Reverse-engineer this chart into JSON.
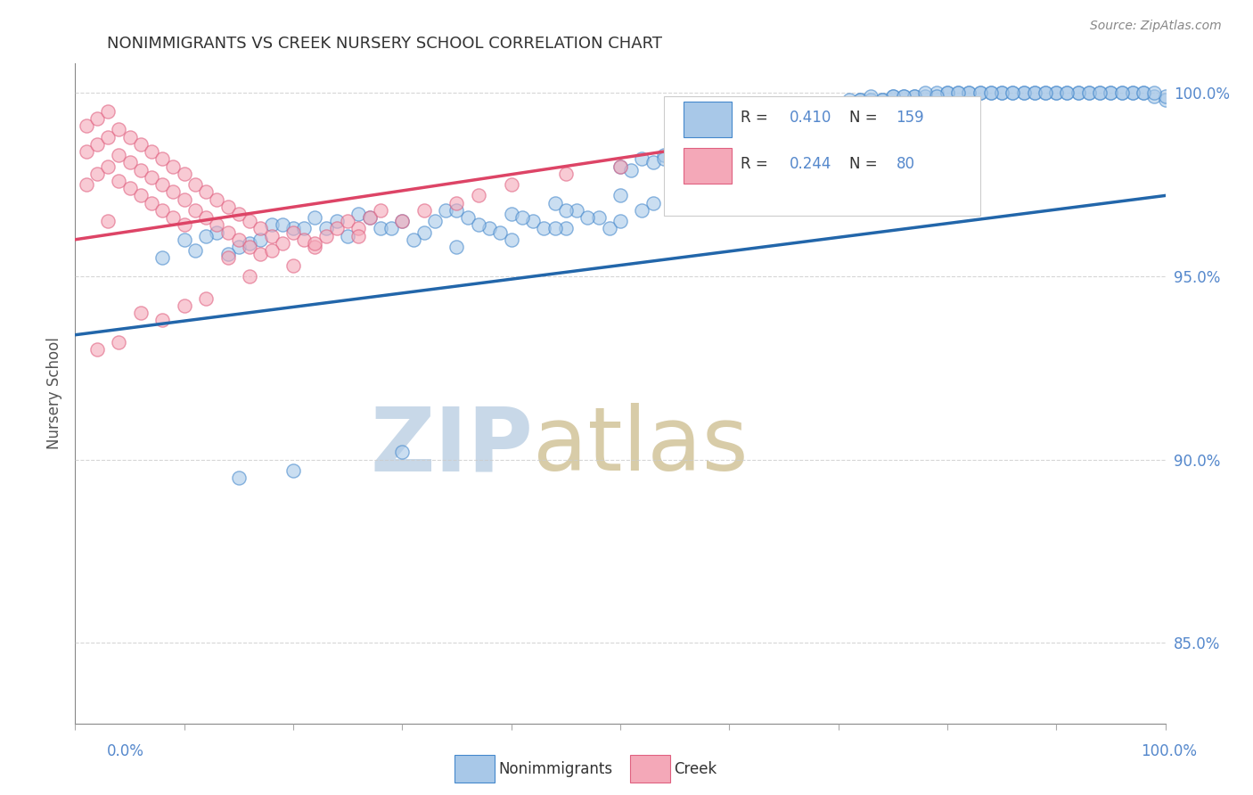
{
  "title": "NONIMMIGRANTS VS CREEK NURSERY SCHOOL CORRELATION CHART",
  "source": "Source: ZipAtlas.com",
  "ylabel": "Nursery School",
  "y_tick_labels": [
    "85.0%",
    "90.0%",
    "95.0%",
    "100.0%"
  ],
  "y_tick_values": [
    0.85,
    0.9,
    0.95,
    1.0
  ],
  "x_range": [
    0.0,
    1.0
  ],
  "y_range": [
    0.828,
    1.008
  ],
  "legend_r_values": [
    "0.410",
    "0.244"
  ],
  "legend_n_values": [
    "159",
    "80"
  ],
  "blue_color": "#a8c8e8",
  "pink_color": "#f4a8b8",
  "blue_edge_color": "#4488cc",
  "pink_edge_color": "#e06080",
  "blue_line_color": "#2266aa",
  "pink_line_color": "#dd4466",
  "watermark_zip_color": "#c8d8e8",
  "watermark_atlas_color": "#d8cca8",
  "background_color": "#ffffff",
  "grid_color": "#cccccc",
  "title_color": "#333333",
  "axis_label_color": "#5588cc",
  "blue_trend_x": [
    0.0,
    1.0
  ],
  "blue_trend_y": [
    0.934,
    0.972
  ],
  "pink_trend_x": [
    0.0,
    0.72
  ],
  "pink_trend_y": [
    0.96,
    0.992
  ],
  "blue_x_dense": [
    0.5,
    0.52,
    0.54,
    0.55,
    0.56,
    0.57,
    0.58,
    0.59,
    0.6,
    0.61,
    0.62,
    0.63,
    0.64,
    0.65,
    0.66,
    0.67,
    0.68,
    0.69,
    0.7,
    0.71,
    0.72,
    0.73,
    0.74,
    0.75,
    0.76,
    0.77,
    0.78,
    0.79,
    0.8,
    0.81,
    0.82,
    0.83,
    0.84,
    0.85,
    0.86,
    0.87,
    0.88,
    0.89,
    0.9,
    0.91,
    0.92,
    0.93,
    0.94,
    0.95,
    0.96,
    0.97,
    0.98,
    0.99,
    1.0,
    0.55,
    0.6,
    0.65,
    0.7,
    0.75,
    0.8,
    0.85,
    0.9,
    0.95,
    1.0,
    0.57,
    0.62,
    0.67,
    0.72,
    0.77,
    0.82,
    0.87,
    0.92,
    0.97,
    0.53,
    0.58,
    0.63,
    0.68,
    0.73,
    0.78,
    0.83,
    0.88,
    0.93,
    0.98,
    0.51,
    0.56,
    0.61,
    0.66,
    0.71,
    0.76,
    0.81,
    0.86,
    0.91,
    0.96,
    0.54,
    0.59,
    0.64,
    0.69,
    0.74,
    0.79,
    0.84,
    0.89,
    0.94,
    0.99
  ],
  "blue_y_dense": [
    0.98,
    0.982,
    0.983,
    0.985,
    0.986,
    0.987,
    0.988,
    0.989,
    0.99,
    0.991,
    0.992,
    0.993,
    0.993,
    0.994,
    0.995,
    0.995,
    0.996,
    0.996,
    0.997,
    0.997,
    0.998,
    0.998,
    0.998,
    0.999,
    0.999,
    0.999,
    0.999,
    1.0,
    1.0,
    1.0,
    1.0,
    1.0,
    1.0,
    1.0,
    1.0,
    1.0,
    1.0,
    1.0,
    1.0,
    1.0,
    1.0,
    1.0,
    1.0,
    1.0,
    1.0,
    1.0,
    1.0,
    0.999,
    0.998,
    0.984,
    0.991,
    0.995,
    0.997,
    0.999,
    1.0,
    1.0,
    1.0,
    1.0,
    0.999,
    0.986,
    0.992,
    0.996,
    0.998,
    0.999,
    1.0,
    1.0,
    1.0,
    1.0,
    0.981,
    0.988,
    0.993,
    0.997,
    0.999,
    1.0,
    1.0,
    1.0,
    1.0,
    1.0,
    0.979,
    0.983,
    0.99,
    0.994,
    0.998,
    0.999,
    1.0,
    1.0,
    1.0,
    1.0,
    0.982,
    0.987,
    0.991,
    0.995,
    0.998,
    0.999,
    1.0,
    1.0,
    1.0,
    1.0
  ],
  "blue_x_sparse": [
    0.1,
    0.13,
    0.15,
    0.18,
    0.2,
    0.22,
    0.24,
    0.26,
    0.28,
    0.3,
    0.32,
    0.34,
    0.36,
    0.38,
    0.4,
    0.42,
    0.44,
    0.46,
    0.48,
    0.08,
    0.12,
    0.16,
    0.19,
    0.23,
    0.25,
    0.27,
    0.29,
    0.31,
    0.33,
    0.35,
    0.37,
    0.39,
    0.41,
    0.43,
    0.45,
    0.47,
    0.49,
    0.14,
    0.17,
    0.21,
    0.11,
    0.5,
    0.53,
    0.56,
    0.5,
    0.45,
    0.4,
    0.35,
    0.6,
    0.52,
    0.44,
    0.65,
    0.68,
    0.72,
    0.15,
    0.2,
    0.3
  ],
  "blue_y_sparse": [
    0.96,
    0.962,
    0.958,
    0.964,
    0.963,
    0.966,
    0.965,
    0.967,
    0.963,
    0.965,
    0.962,
    0.968,
    0.966,
    0.963,
    0.967,
    0.965,
    0.97,
    0.968,
    0.966,
    0.955,
    0.961,
    0.959,
    0.964,
    0.963,
    0.961,
    0.966,
    0.963,
    0.96,
    0.965,
    0.968,
    0.964,
    0.962,
    0.966,
    0.963,
    0.968,
    0.966,
    0.963,
    0.956,
    0.96,
    0.963,
    0.957,
    0.972,
    0.97,
    0.974,
    0.965,
    0.963,
    0.96,
    0.958,
    0.975,
    0.968,
    0.963,
    0.972,
    0.97,
    0.975,
    0.895,
    0.897,
    0.902
  ],
  "pink_x": [
    0.01,
    0.01,
    0.02,
    0.02,
    0.02,
    0.03,
    0.03,
    0.03,
    0.04,
    0.04,
    0.04,
    0.05,
    0.05,
    0.05,
    0.06,
    0.06,
    0.06,
    0.07,
    0.07,
    0.07,
    0.08,
    0.08,
    0.08,
    0.09,
    0.09,
    0.09,
    0.1,
    0.1,
    0.1,
    0.11,
    0.11,
    0.12,
    0.12,
    0.13,
    0.13,
    0.14,
    0.14,
    0.15,
    0.15,
    0.16,
    0.16,
    0.17,
    0.17,
    0.18,
    0.19,
    0.2,
    0.21,
    0.22,
    0.23,
    0.24,
    0.25,
    0.26,
    0.27,
    0.28,
    0.3,
    0.32,
    0.35,
    0.37,
    0.4,
    0.45,
    0.5,
    0.55,
    0.6,
    0.65,
    0.7,
    0.14,
    0.18,
    0.22,
    0.26,
    0.06,
    0.1,
    0.02,
    0.04,
    0.08,
    0.12,
    0.16,
    0.2,
    0.01,
    0.03
  ],
  "pink_y": [
    0.984,
    0.991,
    0.978,
    0.986,
    0.993,
    0.98,
    0.988,
    0.995,
    0.976,
    0.983,
    0.99,
    0.974,
    0.981,
    0.988,
    0.972,
    0.979,
    0.986,
    0.97,
    0.977,
    0.984,
    0.968,
    0.975,
    0.982,
    0.966,
    0.973,
    0.98,
    0.964,
    0.971,
    0.978,
    0.968,
    0.975,
    0.966,
    0.973,
    0.964,
    0.971,
    0.962,
    0.969,
    0.96,
    0.967,
    0.958,
    0.965,
    0.956,
    0.963,
    0.961,
    0.959,
    0.962,
    0.96,
    0.958,
    0.961,
    0.963,
    0.965,
    0.963,
    0.966,
    0.968,
    0.965,
    0.968,
    0.97,
    0.972,
    0.975,
    0.978,
    0.98,
    0.982,
    0.985,
    0.988,
    0.99,
    0.955,
    0.957,
    0.959,
    0.961,
    0.94,
    0.942,
    0.93,
    0.932,
    0.938,
    0.944,
    0.95,
    0.953,
    0.975,
    0.965
  ]
}
